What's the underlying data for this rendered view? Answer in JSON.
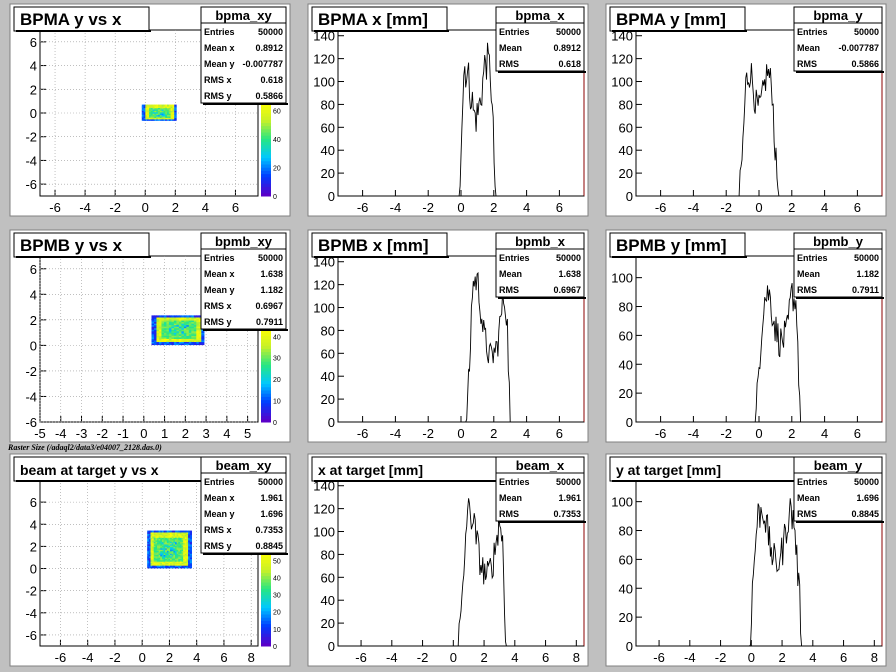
{
  "caption": "Raster Size (/adaql2/data3/e04007_2128.das.0)",
  "stat_labels": {
    "entries": "Entries",
    "mean": "Mean",
    "mean_x": "Mean x",
    "mean_y": "Mean y",
    "rms": "RMS",
    "rms_x": "RMS x",
    "rms_y": "RMS y"
  },
  "colors": {
    "background": "#c0c0c0",
    "frame": "#ffffff",
    "axis_right": "#8b0000",
    "line": "#000000"
  },
  "chart_data": [
    {
      "id": "bpma_xy",
      "type": "heatmap",
      "title": "BPMA y vs x",
      "stat_name": "bpma_xy",
      "entries": "50000",
      "mean_x": "0.8912",
      "mean_y": "-0.007787",
      "rms_x": "0.618",
      "rms_y": "0.5866",
      "xlim": [
        -7,
        7.5
      ],
      "ylim": [
        -7,
        7
      ],
      "xticks": [
        -6,
        -4,
        -2,
        0,
        2,
        4,
        6
      ],
      "yticks": [
        -6,
        -4,
        -2,
        0,
        2,
        4,
        6
      ],
      "cx": 0.9,
      "cy": 0.0,
      "hw": 1.0,
      "hh": 0.6,
      "zticks": [
        0,
        20,
        40,
        60
      ]
    },
    {
      "id": "bpma_x",
      "type": "line",
      "title": "BPMA x [mm]",
      "stat_name": "bpma_x",
      "entries": "50000",
      "mean": "0.8912",
      "rms": "0.618",
      "xlim": [
        -7.5,
        7.5
      ],
      "ylim": [
        0,
        145
      ],
      "xticks": [
        -6,
        -4,
        -2,
        0,
        2,
        4,
        6
      ],
      "yticks": [
        0,
        20,
        40,
        60,
        80,
        100,
        120,
        140
      ],
      "x_nodes": [
        -0.1,
        0.0,
        0.2,
        0.5,
        0.8,
        1.0,
        1.2,
        1.5,
        1.8,
        2.0,
        2.1
      ],
      "y_nodes": [
        0,
        50,
        115,
        100,
        70,
        70,
        85,
        120,
        110,
        40,
        0
      ],
      "noise": 18
    },
    {
      "id": "bpma_y",
      "type": "line",
      "title": "BPMA y [mm]",
      "stat_name": "bpma_y",
      "entries": "50000",
      "mean": "-0.007787",
      "rms": "0.5866",
      "xlim": [
        -7.5,
        7.5
      ],
      "ylim": [
        0,
        145
      ],
      "xticks": [
        -6,
        -4,
        -2,
        0,
        2,
        4,
        6
      ],
      "yticks": [
        0,
        20,
        40,
        60,
        80,
        100,
        120,
        140
      ],
      "x_nodes": [
        -1.2,
        -1.0,
        -0.8,
        -0.5,
        -0.2,
        0.0,
        0.2,
        0.5,
        0.8,
        1.0,
        1.2
      ],
      "y_nodes": [
        0,
        40,
        100,
        110,
        80,
        75,
        85,
        110,
        95,
        35,
        0
      ],
      "noise": 14
    },
    {
      "id": "bpmb_xy",
      "type": "heatmap",
      "title": "BPMB y vs x",
      "stat_name": "bpmb_xy",
      "entries": "50000",
      "mean_x": "1.638",
      "mean_y": "1.182",
      "rms_x": "0.6967",
      "rms_y": "0.7911",
      "xlim": [
        -5,
        5.5
      ],
      "ylim": [
        -6,
        7
      ],
      "xticks": [
        -5,
        -4,
        -3,
        -2,
        -1,
        0,
        1,
        2,
        3,
        4,
        5
      ],
      "yticks": [
        -6,
        -4,
        -2,
        0,
        2,
        4,
        6
      ],
      "cx": 1.6,
      "cy": 1.2,
      "hw": 1.1,
      "hh": 1.0,
      "zticks": [
        0,
        10,
        20,
        30,
        40
      ]
    },
    {
      "id": "bpmb_x",
      "type": "line",
      "title": "BPMB x [mm]",
      "stat_name": "bpmb_x",
      "entries": "50000",
      "mean": "1.638",
      "rms": "0.6967",
      "xlim": [
        -7.5,
        7.5
      ],
      "ylim": [
        0,
        145
      ],
      "xticks": [
        -6,
        -4,
        -2,
        0,
        2,
        4,
        6
      ],
      "yticks": [
        0,
        20,
        40,
        60,
        80,
        100,
        120,
        140
      ],
      "x_nodes": [
        0.3,
        0.5,
        0.7,
        1.0,
        1.4,
        1.8,
        2.2,
        2.6,
        2.8,
        3.0
      ],
      "y_nodes": [
        0,
        40,
        120,
        125,
        75,
        55,
        65,
        110,
        95,
        0
      ],
      "noise": 14
    },
    {
      "id": "bpmb_y",
      "type": "line",
      "title": "BPMB y [mm]",
      "stat_name": "bpmb_y",
      "entries": "50000",
      "mean": "1.182",
      "rms": "0.7911",
      "xlim": [
        -7.5,
        7.5
      ],
      "ylim": [
        0,
        115
      ],
      "xticks": [
        -6,
        -4,
        -2,
        0,
        2,
        4,
        6
      ],
      "yticks": [
        0,
        20,
        40,
        60,
        80,
        100
      ],
      "x_nodes": [
        -0.2,
        0.0,
        0.3,
        0.6,
        1.0,
        1.3,
        1.7,
        2.0,
        2.3,
        2.5
      ],
      "y_nodes": [
        0,
        40,
        85,
        90,
        65,
        55,
        60,
        90,
        80,
        0
      ],
      "noise": 12
    },
    {
      "id": "beam_xy",
      "type": "heatmap",
      "title": "beam at target y vs x",
      "stat_name": "beam_xy",
      "entries": "50000",
      "mean_x": "1.961",
      "mean_y": "1.696",
      "rms_x": "0.7353",
      "rms_y": "0.8845",
      "xlim": [
        -7.5,
        8.5
      ],
      "ylim": [
        -7,
        8
      ],
      "xticks": [
        -6,
        -4,
        -2,
        0,
        2,
        4,
        6,
        8
      ],
      "yticks": [
        -6,
        -4,
        -2,
        0,
        2,
        4,
        6
      ],
      "cx": 1.9,
      "cy": 1.7,
      "hw": 1.4,
      "hh": 1.5,
      "zticks": [
        0,
        10,
        20,
        30,
        40,
        50
      ]
    },
    {
      "id": "beam_x",
      "type": "line",
      "title": "x at target [mm]",
      "stat_name": "beam_x",
      "entries": "50000",
      "mean": "1.961",
      "rms": "0.7353",
      "xlim": [
        -7.5,
        8.5
      ],
      "ylim": [
        0,
        145
      ],
      "xticks": [
        -6,
        -4,
        -2,
        0,
        2,
        4,
        6,
        8
      ],
      "yticks": [
        0,
        20,
        40,
        60,
        80,
        100,
        120,
        140
      ],
      "x_nodes": [
        0.3,
        0.6,
        0.9,
        1.3,
        1.8,
        2.2,
        2.6,
        3.0,
        3.2,
        3.4
      ],
      "y_nodes": [
        0,
        40,
        120,
        110,
        70,
        60,
        75,
        110,
        95,
        0
      ],
      "noise": 14
    },
    {
      "id": "beam_y",
      "type": "line",
      "title": "y at target [mm]",
      "stat_name": "beam_y",
      "entries": "50000",
      "mean": "1.696",
      "rms": "0.8845",
      "xlim": [
        -7.5,
        8.5
      ],
      "ylim": [
        0,
        115
      ],
      "xticks": [
        -6,
        -4,
        -2,
        0,
        2,
        4,
        6,
        8
      ],
      "yticks": [
        0,
        20,
        40,
        60,
        80,
        100
      ],
      "x_nodes": [
        -0.1,
        0.1,
        0.4,
        0.8,
        1.2,
        1.6,
        2.0,
        2.5,
        2.8,
        3.1,
        3.3
      ],
      "y_nodes": [
        0,
        45,
        90,
        95,
        70,
        55,
        65,
        95,
        85,
        40,
        0
      ],
      "noise": 12
    }
  ]
}
